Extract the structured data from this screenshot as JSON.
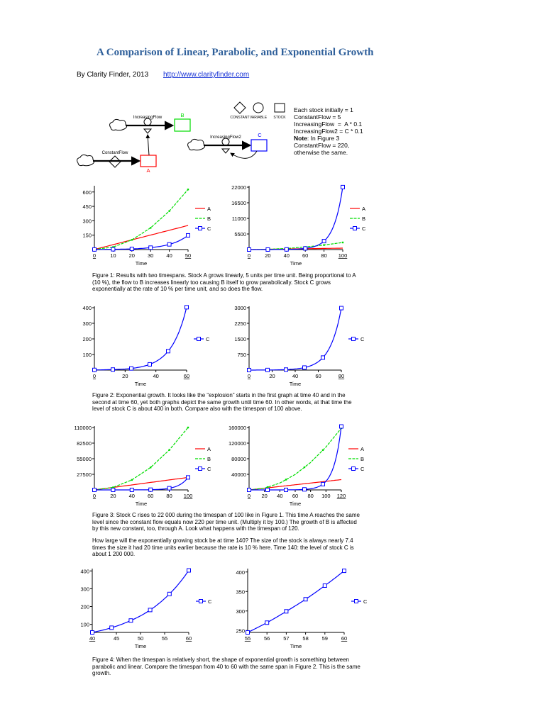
{
  "header": {
    "title": "A Comparison of Linear, Parabolic, and Exponential Growth",
    "byline": "By Clarity Finder, 2013",
    "link": "http://www.clarityfinder.com"
  },
  "diagram": {
    "legend": {
      "constant": "CONSTANT",
      "variable": "VARIABLE",
      "stock": "STOCK"
    },
    "labels": {
      "increasing_flow": "IncreasingFlow",
      "increasing_flow2": "IncreasingFlow2",
      "constant_flow": "ConstantFlow",
      "stock_a": "A",
      "stock_b": "B",
      "stock_c": "C"
    },
    "definitions": [
      "Each stock initially = 1",
      "",
      "ConstantFlow = 5",
      "IncreasingFlow  =  A * 0.1",
      "IncreasingFlow2 = C * 0.1",
      ""
    ],
    "note_bold": "Note",
    "note_lines": [
      ": In Figure 3",
      "ConstantFlow = 220,",
      "otherwise the same."
    ]
  },
  "captions": {
    "fig1": "Figure 1: Results with two timespans. Stock A grows linearly, 5 units per time unit. Being proportional to A (10 %), the flow to B increases linearly too causing B itself to grow parabolically. Stock C grows exponentially at the rate of 10 % per time unit, and so does the flow.",
    "fig2": "Figure 2: Exponential growth. It looks like the “explosion” starts in the first graph at time 40 and in the second at time 60, yet both graphs depict the same growth until time 60. In other words, at that time the level of stock C is about 400 in both. Compare also with the timespan of 100 above.",
    "fig3": "Figure 3: Stock C rises to 22 000 during the timespan of 100 like in Figure 1. This time A reaches the same level since the constant flow equals now 220 per time unit. (Multiply it by 100.) The growth of B is affected by this new constant, too, through A. Look what happens with the timespan of 120.",
    "fig3b": "How large will the exponentially growing stock be at time 140? The size of the stock is always nearly 7.4 times the size it had 20 time units earlier because the rate is 10 % here. Time 140: the level of stock C is about 1 200 000.",
    "fig4": "Figure 4: When the timespan is relatively short, the shape of exponential growth is something between parabolic and linear. Compare the timespan from 40 to 60 with the same span in Figure 2. This is the same growth."
  },
  "colors": {
    "A": "#ff0000",
    "B": "#00dd00",
    "C": "#0000ff",
    "title": "#2e5f9a",
    "link": "#1a35d6"
  },
  "chart_data": [
    {
      "id": "fig1a",
      "type": "line",
      "xlabel": "Time",
      "xlim": [
        0,
        50
      ],
      "ylim": [
        0,
        650
      ],
      "xticks": [
        0,
        10,
        20,
        30,
        40,
        50
      ],
      "yticks": [
        150,
        300,
        450,
        600
      ],
      "series": [
        {
          "name": "A",
          "x": [
            0,
            50
          ],
          "y": [
            1,
            251
          ]
        },
        {
          "name": "B",
          "x": [
            0,
            10,
            20,
            30,
            40,
            50
          ],
          "y": [
            1,
            26,
            101,
            226,
            401,
            626
          ]
        },
        {
          "name": "C",
          "x": [
            0,
            10,
            20,
            30,
            40,
            50
          ],
          "y": [
            1,
            3,
            7,
            20,
            54,
            148
          ]
        }
      ]
    },
    {
      "id": "fig1b",
      "type": "line",
      "xlabel": "Time",
      "xlim": [
        0,
        100
      ],
      "ylim": [
        0,
        22000
      ],
      "xticks": [
        0,
        20,
        40,
        60,
        80,
        100
      ],
      "yticks": [
        5500,
        11000,
        16500,
        22000
      ],
      "series": [
        {
          "name": "A",
          "x": [
            0,
            100
          ],
          "y": [
            1,
            501
          ]
        },
        {
          "name": "B",
          "x": [
            0,
            20,
            40,
            60,
            80,
            100
          ],
          "y": [
            1,
            101,
            401,
            901,
            1601,
            2501
          ]
        },
        {
          "name": "C",
          "x": [
            0,
            20,
            40,
            60,
            70,
            80,
            90,
            100
          ],
          "y": [
            1,
            7,
            55,
            403,
            1097,
            2981,
            8103,
            22026
          ]
        }
      ]
    },
    {
      "id": "fig2a",
      "type": "line",
      "xlabel": "Time",
      "xlim": [
        0,
        60
      ],
      "ylim": [
        0,
        400
      ],
      "xticks": [
        0,
        20,
        40,
        60
      ],
      "yticks": [
        100,
        200,
        300,
        400
      ],
      "series": [
        {
          "name": "C",
          "x": [
            0,
            10,
            20,
            30,
            40,
            50,
            60
          ],
          "y": [
            1,
            3,
            7,
            20,
            55,
            148,
            403
          ]
        }
      ]
    },
    {
      "id": "fig2b",
      "type": "line",
      "xlabel": "Time",
      "xlim": [
        0,
        80
      ],
      "ylim": [
        0,
        3000
      ],
      "xticks": [
        0,
        20,
        40,
        60,
        80
      ],
      "yticks": [
        750,
        1500,
        2250,
        3000
      ],
      "series": [
        {
          "name": "C",
          "x": [
            0,
            20,
            40,
            50,
            60,
            70,
            80
          ],
          "y": [
            1,
            7,
            55,
            148,
            403,
            1097,
            2981
          ]
        }
      ]
    },
    {
      "id": "fig3a",
      "type": "line",
      "xlabel": "Time",
      "xlim": [
        0,
        100
      ],
      "ylim": [
        0,
        110000
      ],
      "xticks": [
        0,
        20,
        40,
        60,
        80,
        100
      ],
      "yticks": [
        27500,
        55000,
        82500,
        110000
      ],
      "series": [
        {
          "name": "A",
          "x": [
            0,
            100
          ],
          "y": [
            1,
            22001
          ]
        },
        {
          "name": "B",
          "x": [
            0,
            20,
            40,
            60,
            80,
            100
          ],
          "y": [
            1,
            4400,
            17600,
            39600,
            70400,
            110000
          ]
        },
        {
          "name": "C",
          "x": [
            0,
            20,
            40,
            60,
            70,
            80,
            90,
            100
          ],
          "y": [
            1,
            7,
            55,
            403,
            1097,
            2981,
            8103,
            22026
          ]
        }
      ]
    },
    {
      "id": "fig3b",
      "type": "line",
      "xlabel": "Time",
      "xlim": [
        0,
        120
      ],
      "ylim": [
        0,
        160000
      ],
      "xticks": [
        0,
        20,
        40,
        60,
        80,
        100,
        120
      ],
      "yticks": [
        40000,
        80000,
        120000,
        160000
      ],
      "series": [
        {
          "name": "A",
          "x": [
            0,
            120
          ],
          "y": [
            1,
            26401
          ]
        },
        {
          "name": "B",
          "x": [
            0,
            20,
            40,
            60,
            80,
            100,
            120
          ],
          "y": [
            1,
            4400,
            17600,
            39600,
            70400,
            110000,
            158400
          ]
        },
        {
          "name": "C",
          "x": [
            0,
            20,
            40,
            60,
            80,
            90,
            100,
            110,
            120
          ],
          "y": [
            1,
            7,
            55,
            403,
            2981,
            8103,
            22026,
            59874,
            162755
          ]
        }
      ]
    },
    {
      "id": "fig4a",
      "type": "line",
      "xlabel": "Time",
      "xlim": [
        40,
        60
      ],
      "ylim": [
        55,
        405
      ],
      "xticks": [
        40,
        45,
        50,
        55,
        60
      ],
      "yticks": [
        100,
        200,
        300,
        400
      ],
      "series": [
        {
          "name": "C",
          "x": [
            40,
            42.5,
            45,
            47.5,
            50,
            52.5,
            55,
            57.5,
            60
          ],
          "y": [
            55,
            70,
            90,
            116,
            148,
            190,
            245,
            314,
            403
          ]
        }
      ]
    },
    {
      "id": "fig4b",
      "type": "line",
      "xlabel": "Time",
      "xlim": [
        55,
        60
      ],
      "ylim": [
        245,
        405
      ],
      "xticks": [
        55,
        56,
        57,
        58,
        59,
        60
      ],
      "yticks": [
        250,
        300,
        350,
        400
      ],
      "series": [
        {
          "name": "C",
          "x": [
            55,
            56,
            57,
            58,
            59,
            60
          ],
          "y": [
            245,
            270,
            299,
            330,
            365,
            403
          ]
        }
      ]
    }
  ]
}
